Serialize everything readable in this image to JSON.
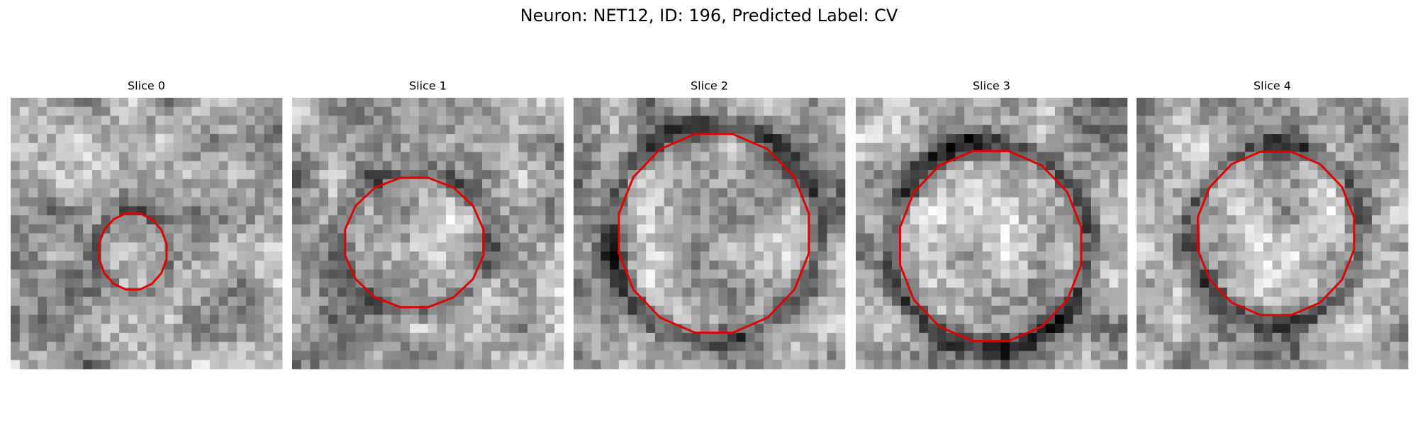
{
  "title": "Neuron: NET12, ID: 196, Predicted Label: CV",
  "panels": [
    {
      "title": "Slice 0"
    },
    {
      "title": "Slice 1"
    },
    {
      "title": "Slice 2"
    },
    {
      "title": "Slice 3"
    },
    {
      "title": "Slice 4"
    }
  ]
}
